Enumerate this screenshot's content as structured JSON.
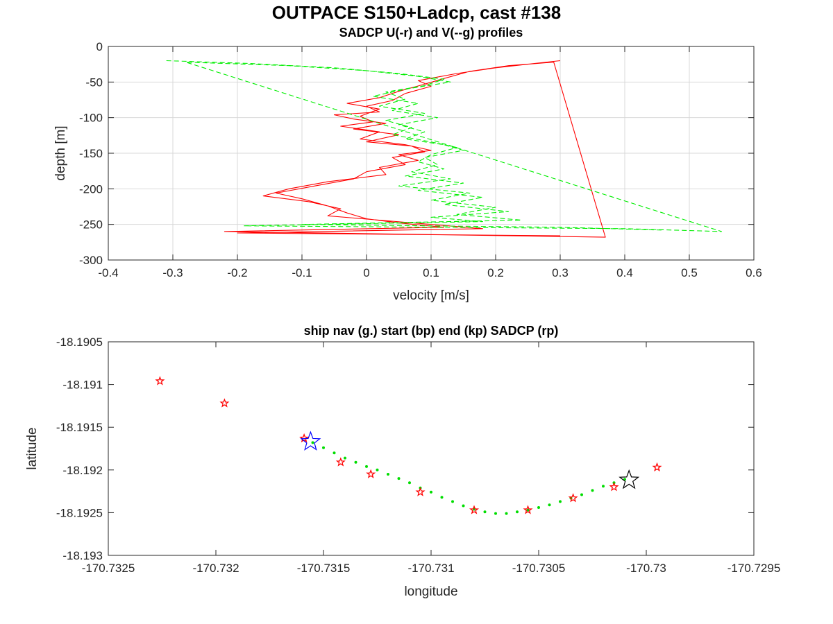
{
  "figure": {
    "title": "OUTPACE S150+Ladcp, cast #138"
  },
  "chart_data": [
    {
      "type": "line",
      "title": "SADCP U(-r) and V(--g) profiles",
      "xlabel": "velocity [m/s]",
      "ylabel": "depth [m]",
      "xlim": [
        -0.4,
        0.6
      ],
      "ylim": [
        -300,
        0
      ],
      "xticks": [
        -0.4,
        -0.3,
        -0.2,
        -0.1,
        0,
        0.1,
        0.2,
        0.3,
        0.4,
        0.5,
        0.6
      ],
      "xtick_labels": [
        "-0.4",
        "-0.3",
        "-0.2",
        "-0.1",
        "0",
        "0.1",
        "0.2",
        "0.3",
        "0.4",
        "0.5",
        "0.6"
      ],
      "yticks": [
        0,
        -50,
        -100,
        -150,
        -200,
        -250,
        -300
      ],
      "ytick_labels": [
        "0",
        "-50",
        "-100",
        "-150",
        "-200",
        "-250",
        "-300"
      ],
      "grid": true,
      "series": [
        {
          "color": "#ff0000",
          "dash": "solid",
          "values": [
            [
              0.3,
              -20
            ],
            [
              0.26,
              -24
            ],
            [
              0.2,
              -30
            ],
            [
              0.14,
              -38
            ],
            [
              0.08,
              -48
            ],
            [
              0.1,
              -56
            ],
            [
              0.06,
              -66
            ],
            [
              0.04,
              -76
            ],
            [
              0.0,
              -84
            ],
            [
              0.02,
              -92
            ],
            [
              -0.05,
              -96
            ],
            [
              -0.02,
              -102
            ],
            [
              0.03,
              -108
            ],
            [
              -0.02,
              -116
            ],
            [
              0.05,
              -124
            ],
            [
              0.0,
              -134
            ],
            [
              0.07,
              -140
            ],
            [
              0.09,
              -148
            ],
            [
              0.04,
              -156
            ],
            [
              0.06,
              -166
            ],
            [
              0.0,
              -176
            ],
            [
              -0.02,
              -186
            ],
            [
              -0.08,
              -196
            ],
            [
              -0.14,
              -206
            ],
            [
              -0.1,
              -214
            ],
            [
              -0.06,
              -224
            ],
            [
              -0.03,
              -234
            ],
            [
              0.0,
              -242
            ],
            [
              0.05,
              -248
            ],
            [
              0.12,
              -254
            ],
            [
              -0.22,
              -260
            ],
            [
              0.37,
              -268
            ],
            [
              0.29,
              -22
            ],
            [
              0.22,
              -27
            ],
            [
              0.16,
              -35
            ],
            [
              0.12,
              -45
            ],
            [
              0.09,
              -53
            ],
            [
              0.05,
              -63
            ],
            [
              0.02,
              -72
            ],
            [
              -0.03,
              -80
            ],
            [
              0.02,
              -88
            ],
            [
              -0.01,
              -98
            ],
            [
              0.01,
              -106
            ],
            [
              -0.04,
              -112
            ],
            [
              0.02,
              -120
            ],
            [
              -0.01,
              -130
            ],
            [
              0.06,
              -138
            ],
            [
              0.1,
              -146
            ],
            [
              0.05,
              -152
            ],
            [
              0.08,
              -160
            ],
            [
              0.02,
              -170
            ],
            [
              0.03,
              -180
            ],
            [
              -0.06,
              -190
            ],
            [
              -0.12,
              -200
            ],
            [
              -0.16,
              -210
            ],
            [
              -0.09,
              -218
            ],
            [
              -0.04,
              -228
            ],
            [
              -0.06,
              -238
            ],
            [
              0.02,
              -244
            ],
            [
              0.1,
              -250
            ],
            [
              0.18,
              -256
            ],
            [
              -0.2,
              -262
            ],
            [
              0.3,
              -266
            ]
          ]
        },
        {
          "color": "#00ee00",
          "dash": "dashed",
          "values": [
            [
              -0.31,
              -20
            ],
            [
              -0.18,
              -24
            ],
            [
              -0.05,
              -30
            ],
            [
              0.05,
              -38
            ],
            [
              0.12,
              -46
            ],
            [
              0.09,
              -55
            ],
            [
              0.03,
              -64
            ],
            [
              0.06,
              -74
            ],
            [
              0.02,
              -84
            ],
            [
              0.09,
              -94
            ],
            [
              0.03,
              -104
            ],
            [
              0.07,
              -114
            ],
            [
              0.04,
              -124
            ],
            [
              0.1,
              -134
            ],
            [
              0.14,
              -142
            ],
            [
              0.1,
              -152
            ],
            [
              0.08,
              -162
            ],
            [
              0.12,
              -172
            ],
            [
              0.06,
              -182
            ],
            [
              0.15,
              -192
            ],
            [
              0.08,
              -202
            ],
            [
              0.18,
              -212
            ],
            [
              0.12,
              -222
            ],
            [
              0.22,
              -232
            ],
            [
              0.1,
              -240
            ],
            [
              0.18,
              -246
            ],
            [
              -0.19,
              -252
            ],
            [
              0.4,
              -256
            ],
            [
              0.55,
              -260
            ],
            [
              -0.28,
              -22
            ],
            [
              -0.12,
              -27
            ],
            [
              0.0,
              -34
            ],
            [
              0.08,
              -42
            ],
            [
              0.13,
              -50
            ],
            [
              0.06,
              -60
            ],
            [
              0.01,
              -70
            ],
            [
              0.08,
              -80
            ],
            [
              0.04,
              -90
            ],
            [
              0.11,
              -100
            ],
            [
              0.05,
              -110
            ],
            [
              0.09,
              -120
            ],
            [
              0.06,
              -130
            ],
            [
              0.12,
              -138
            ],
            [
              0.15,
              -146
            ],
            [
              0.09,
              -156
            ],
            [
              0.11,
              -166
            ],
            [
              0.07,
              -176
            ],
            [
              0.13,
              -186
            ],
            [
              0.05,
              -196
            ],
            [
              0.16,
              -206
            ],
            [
              0.1,
              -216
            ],
            [
              0.2,
              -226
            ],
            [
              0.14,
              -236
            ],
            [
              0.24,
              -244
            ],
            [
              -0.1,
              -250
            ],
            [
              0.3,
              -254
            ],
            [
              0.46,
              -258
            ]
          ]
        }
      ]
    },
    {
      "type": "scatter",
      "title": "ship nav (g.) start (bp) end (kp) SADCP (rp)",
      "xlabel": "longitude",
      "ylabel": "latitude",
      "xlim": [
        -170.7325,
        -170.7295
      ],
      "ylim": [
        -18.193,
        -18.1905
      ],
      "xticks": [
        -170.7325,
        -170.732,
        -170.7315,
        -170.731,
        -170.7305,
        -170.73,
        -170.7295
      ],
      "xtick_labels": [
        "-170.7325",
        "-170.732",
        "-170.7315",
        "-170.731",
        "-170.7305",
        "-170.73",
        "-170.7295"
      ],
      "yticks": [
        -18.1905,
        -18.191,
        -18.1915,
        -18.192,
        -18.1925,
        -18.193
      ],
      "ytick_labels": [
        "-18.1905",
        "-18.191",
        "-18.1915",
        "-18.192",
        "-18.1925",
        "-18.193"
      ],
      "grid": false,
      "nav": {
        "color": "#00dd00",
        "points": [
          [
            -170.73155,
            -18.19168
          ],
          [
            -170.7315,
            -18.19174
          ],
          [
            -170.73145,
            -18.1918
          ],
          [
            -170.7314,
            -18.19186
          ],
          [
            -170.73135,
            -18.19191
          ],
          [
            -170.7313,
            -18.19196
          ],
          [
            -170.73125,
            -18.192
          ],
          [
            -170.7312,
            -18.19205
          ],
          [
            -170.73115,
            -18.1921
          ],
          [
            -170.7311,
            -18.19215
          ],
          [
            -170.73105,
            -18.19221
          ],
          [
            -170.731,
            -18.19226
          ],
          [
            -170.73095,
            -18.19232
          ],
          [
            -170.7309,
            -18.19237
          ],
          [
            -170.73085,
            -18.19242
          ],
          [
            -170.7308,
            -18.19246
          ],
          [
            -170.73075,
            -18.19249
          ],
          [
            -170.7307,
            -18.19251
          ],
          [
            -170.73065,
            -18.19251
          ],
          [
            -170.7306,
            -18.19249
          ],
          [
            -170.73055,
            -18.19247
          ],
          [
            -170.7305,
            -18.19244
          ],
          [
            -170.73045,
            -18.19241
          ],
          [
            -170.7304,
            -18.19237
          ],
          [
            -170.73035,
            -18.19233
          ],
          [
            -170.7303,
            -18.19229
          ],
          [
            -170.73025,
            -18.19224
          ],
          [
            -170.7302,
            -18.19219
          ],
          [
            -170.73015,
            -18.19215
          ],
          [
            -170.7301,
            -18.19211
          ]
        ]
      },
      "start": {
        "lon": -170.73156,
        "lat": -18.19167,
        "color": "#0000ff"
      },
      "end": {
        "lon": -170.73008,
        "lat": -18.19212,
        "color": "#000000"
      },
      "sadcp": {
        "color": "#ff0000",
        "points": [
          [
            -170.73226,
            -18.19096
          ],
          [
            -170.73196,
            -18.19122
          ],
          [
            -170.73159,
            -18.19163
          ],
          [
            -170.73142,
            -18.19191
          ],
          [
            -170.73128,
            -18.19205
          ],
          [
            -170.73105,
            -18.19226
          ],
          [
            -170.7308,
            -18.19247
          ],
          [
            -170.73055,
            -18.19247
          ],
          [
            -170.73034,
            -18.19233
          ],
          [
            -170.73015,
            -18.1922
          ],
          [
            -170.72995,
            -18.19197
          ]
        ]
      }
    }
  ]
}
